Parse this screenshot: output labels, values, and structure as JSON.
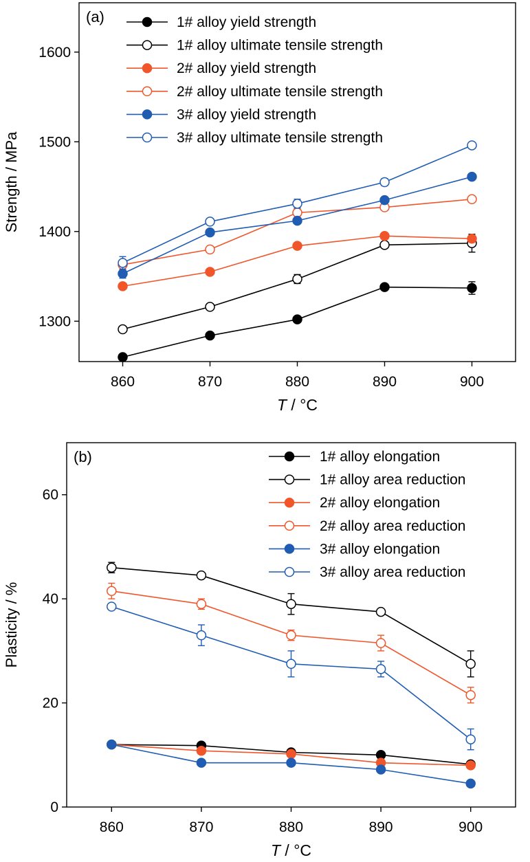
{
  "chart_data": [
    {
      "type": "line",
      "panel_label": "(a)",
      "ylabel": "Strength / MPa",
      "xlabel_var": "T",
      "xlabel_unit": " / °C",
      "xlim": [
        855,
        905
      ],
      "ylim": [
        1255,
        1655
      ],
      "xticks": [
        860,
        870,
        880,
        890,
        900
      ],
      "yticks": [
        1300,
        1400,
        1500,
        1600
      ],
      "x": [
        860,
        870,
        880,
        890,
        900
      ],
      "grid": false,
      "legend_position": "top",
      "series": [
        {
          "name": "1# alloy yield strength",
          "color": "#000000",
          "marker": "filled",
          "values": [
            1260,
            1284,
            1302,
            1338,
            1337
          ],
          "err": [
            0,
            0,
            3,
            0,
            7
          ]
        },
        {
          "name": "1# alloy ultimate tensile strength",
          "color": "#000000",
          "marker": "open",
          "values": [
            1291,
            1316,
            1347,
            1385,
            1387
          ],
          "err": [
            0,
            0,
            5,
            0,
            10
          ]
        },
        {
          "name": "2# alloy yield strength",
          "color": "#f0562a",
          "marker": "filled",
          "values": [
            1339,
            1355,
            1384,
            1395,
            1392
          ],
          "err": [
            0,
            0,
            0,
            0,
            4
          ]
        },
        {
          "name": "2# alloy ultimate tensile strength",
          "color": "#f0562a",
          "marker": "open",
          "values": [
            1363,
            1380,
            1421,
            1427,
            1436
          ],
          "err": [
            0,
            0,
            4,
            0,
            0
          ]
        },
        {
          "name": "3# alloy yield strength",
          "color": "#1f5cb2",
          "marker": "filled",
          "values": [
            1353,
            1399,
            1412,
            1435,
            1461
          ],
          "err": [
            5,
            0,
            0,
            0,
            0
          ]
        },
        {
          "name": "3# alloy ultimate tensile strength",
          "color": "#1f5cb2",
          "marker": "open",
          "values": [
            1365,
            1411,
            1431,
            1455,
            1496
          ],
          "err": [
            7,
            0,
            5,
            4,
            0
          ]
        }
      ]
    },
    {
      "type": "line",
      "panel_label": "(b)",
      "ylabel": "Plasticity / %",
      "xlabel_var": "T",
      "xlabel_unit": " / °C",
      "xlim": [
        855,
        905
      ],
      "ylim": [
        0,
        70
      ],
      "xticks": [
        860,
        870,
        880,
        890,
        900
      ],
      "yticks": [
        0,
        20,
        40,
        60
      ],
      "x": [
        860,
        870,
        880,
        890,
        900
      ],
      "grid": false,
      "legend_position": "top-right",
      "series": [
        {
          "name": "1# alloy elongation",
          "color": "#000000",
          "marker": "filled",
          "values": [
            12.0,
            11.8,
            10.5,
            10.0,
            8.2
          ],
          "err": [
            0,
            0,
            0,
            0,
            0.6
          ]
        },
        {
          "name": "1# alloy area reduction",
          "color": "#000000",
          "marker": "open",
          "values": [
            46.0,
            44.5,
            39.0,
            37.5,
            27.5
          ],
          "err": [
            1.0,
            0.5,
            2.0,
            0.5,
            2.5
          ]
        },
        {
          "name": "2# alloy elongation",
          "color": "#f0562a",
          "marker": "filled",
          "values": [
            12.0,
            10.8,
            10.2,
            8.5,
            8.0
          ],
          "err": [
            0,
            0.6,
            0,
            0,
            0.6
          ]
        },
        {
          "name": "2# alloy area reduction",
          "color": "#f0562a",
          "marker": "open",
          "values": [
            41.5,
            39.0,
            33.0,
            31.5,
            21.5
          ],
          "err": [
            1.5,
            1.0,
            1.0,
            1.5,
            1.5
          ]
        },
        {
          "name": "3# alloy elongation",
          "color": "#1f5cb2",
          "marker": "filled",
          "values": [
            12.0,
            8.5,
            8.5,
            7.2,
            4.5
          ],
          "err": [
            0,
            0,
            0,
            0,
            0
          ]
        },
        {
          "name": "3# alloy area reduction",
          "color": "#1f5cb2",
          "marker": "open",
          "values": [
            38.5,
            33.0,
            27.5,
            26.5,
            13.0
          ],
          "err": [
            0.5,
            2.0,
            2.5,
            1.5,
            2.0
          ]
        }
      ]
    }
  ]
}
